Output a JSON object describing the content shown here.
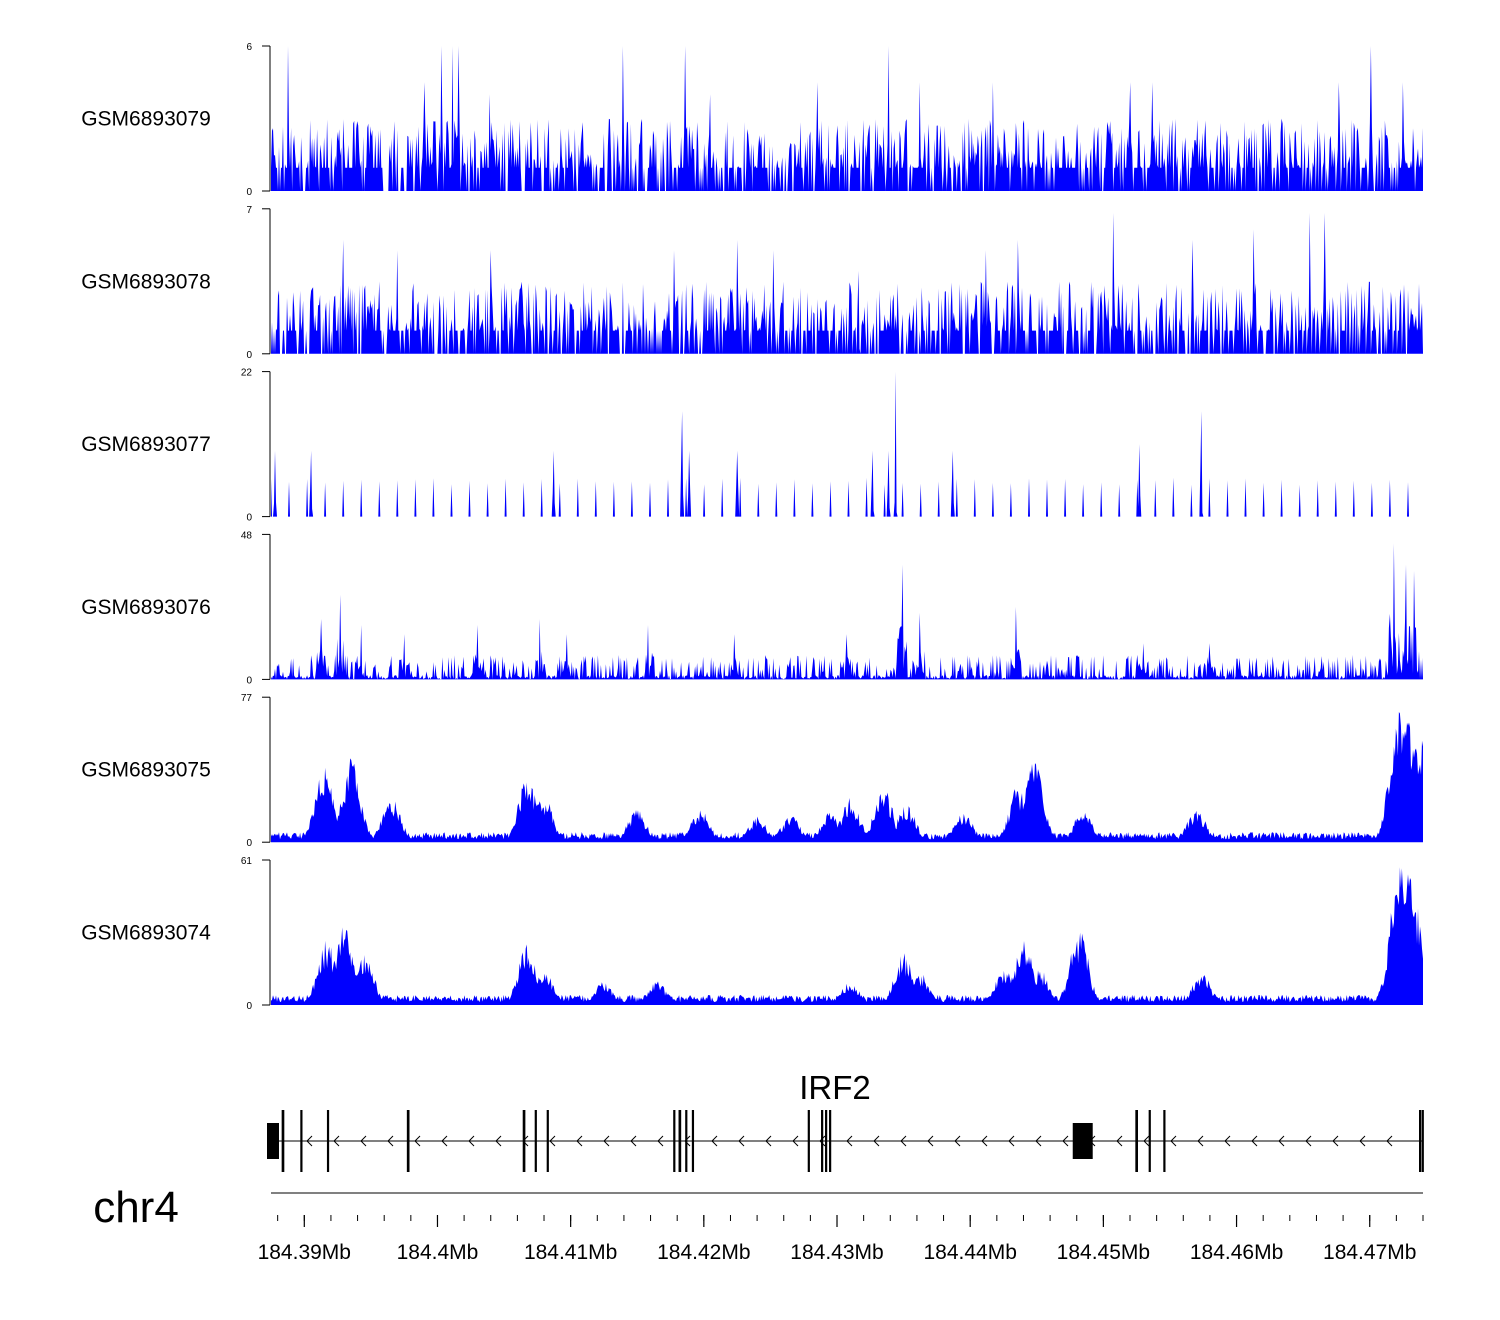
{
  "chart_data": {
    "type": "area",
    "title": "",
    "genome_region": {
      "chromosome": "chr4",
      "start_mb": 184.3875,
      "end_mb": 184.474
    },
    "fill_color": "#0000ff",
    "tracks": [
      {
        "name": "GSM6893079",
        "ylim": [
          0,
          6
        ],
        "ytick_labels": [
          "0",
          "6"
        ],
        "profile": "sparse",
        "peaks": [
          [
            184.3888,
            6
          ],
          [
            184.399,
            4.5
          ],
          [
            184.4003,
            6
          ],
          [
            184.4011,
            6
          ],
          [
            184.4016,
            6
          ],
          [
            184.4039,
            4
          ],
          [
            184.4139,
            6
          ],
          [
            184.4186,
            6
          ],
          [
            184.4205,
            4
          ],
          [
            184.4285,
            4.5
          ],
          [
            184.4339,
            6
          ],
          [
            184.4362,
            4.5
          ],
          [
            184.4417,
            4.5
          ],
          [
            184.452,
            4.5
          ],
          [
            184.4537,
            4.5
          ],
          [
            184.4677,
            4.5
          ],
          [
            184.4701,
            6
          ],
          [
            184.4725,
            4.5
          ]
        ]
      },
      {
        "name": "GSM6893078",
        "ylim": [
          0,
          7
        ],
        "ytick_labels": [
          "0",
          "7"
        ],
        "profile": "sparse",
        "peaks": [
          [
            184.3929,
            5.5
          ],
          [
            184.397,
            5
          ],
          [
            184.404,
            5
          ],
          [
            184.4178,
            5
          ],
          [
            184.4225,
            5.5
          ],
          [
            184.4252,
            5
          ],
          [
            184.4316,
            4
          ],
          [
            184.4412,
            5
          ],
          [
            184.4436,
            5.5
          ],
          [
            184.4507,
            6.8
          ],
          [
            184.4567,
            5.5
          ],
          [
            184.4613,
            6
          ],
          [
            184.4655,
            6.8
          ],
          [
            184.4666,
            6.8
          ]
        ]
      },
      {
        "name": "GSM6893077",
        "ylim": [
          0,
          22
        ],
        "ytick_labels": [
          "0",
          "22"
        ],
        "profile": "discrete",
        "peaks": [
          [
            184.3878,
            10
          ],
          [
            184.3905,
            10
          ],
          [
            184.4087,
            10
          ],
          [
            184.4184,
            16
          ],
          [
            184.4189,
            10
          ],
          [
            184.4225,
            10
          ],
          [
            184.4327,
            10
          ],
          [
            184.4339,
            10
          ],
          [
            184.4344,
            22
          ],
          [
            184.4387,
            10
          ],
          [
            184.4527,
            11
          ],
          [
            184.4574,
            16
          ]
        ]
      },
      {
        "name": "GSM6893076",
        "ylim": [
          0,
          48
        ],
        "ytick_labels": [
          "0",
          "48"
        ],
        "profile": "peaky",
        "peaks": [
          [
            184.3913,
            20
          ],
          [
            184.3927,
            28
          ],
          [
            184.3943,
            18
          ],
          [
            184.3975,
            15
          ],
          [
            184.403,
            18
          ],
          [
            184.4077,
            20
          ],
          [
            184.4097,
            15
          ],
          [
            184.4158,
            18
          ],
          [
            184.4223,
            15
          ],
          [
            184.4307,
            15
          ],
          [
            184.4349,
            38
          ],
          [
            184.4362,
            22
          ],
          [
            184.4434,
            24
          ],
          [
            184.453,
            12
          ],
          [
            184.458,
            12
          ],
          [
            184.4718,
            45
          ],
          [
            184.4727,
            38
          ],
          [
            184.4733,
            36
          ]
        ]
      },
      {
        "name": "GSM6893075",
        "ylim": [
          0,
          77
        ],
        "ytick_labels": [
          "0",
          "77"
        ],
        "profile": "broad",
        "peaks": [
          [
            184.3915,
            40
          ],
          [
            184.3935,
            45
          ],
          [
            184.3965,
            25
          ],
          [
            184.4068,
            36
          ],
          [
            184.408,
            26
          ],
          [
            184.415,
            18
          ],
          [
            184.4197,
            18
          ],
          [
            184.424,
            14
          ],
          [
            184.4265,
            15
          ],
          [
            184.4295,
            18
          ],
          [
            184.431,
            24
          ],
          [
            184.4335,
            30
          ],
          [
            184.4352,
            20
          ],
          [
            184.4395,
            16
          ],
          [
            184.4436,
            30
          ],
          [
            184.4448,
            44
          ],
          [
            184.4485,
            18
          ],
          [
            184.457,
            18
          ],
          [
            184.4722,
            77
          ],
          [
            184.473,
            70
          ],
          [
            184.4737,
            60
          ]
        ]
      },
      {
        "name": "GSM6893074",
        "ylim": [
          0,
          61
        ],
        "ytick_labels": [
          "0",
          "61"
        ],
        "profile": "broad",
        "peaks": [
          [
            184.3917,
            28
          ],
          [
            184.393,
            35
          ],
          [
            184.3945,
            22
          ],
          [
            184.4068,
            26
          ],
          [
            184.408,
            16
          ],
          [
            184.4125,
            10
          ],
          [
            184.4165,
            10
          ],
          [
            184.431,
            10
          ],
          [
            184.435,
            22
          ],
          [
            184.4362,
            14
          ],
          [
            184.4426,
            16
          ],
          [
            184.444,
            27
          ],
          [
            184.4452,
            16
          ],
          [
            184.4482,
            32
          ],
          [
            184.4574,
            14
          ],
          [
            184.4722,
            61
          ],
          [
            184.4728,
            58
          ],
          [
            184.4734,
            45
          ]
        ]
      }
    ],
    "gene": {
      "name": "IRF2",
      "strand": "-",
      "exons_mb": [
        [
          184.3872,
          184.3881
        ],
        [
          184.3883,
          184.3885
        ],
        [
          184.3897,
          184.3898
        ],
        [
          184.3917,
          184.3918
        ],
        [
          184.3977,
          184.3979
        ],
        [
          184.4064,
          184.4066
        ],
        [
          184.4073,
          184.4074
        ],
        [
          184.4082,
          184.4083
        ],
        [
          184.4177,
          184.4178
        ],
        [
          184.4181,
          184.4183
        ],
        [
          184.4186,
          184.4187
        ],
        [
          184.4191,
          184.4192
        ],
        [
          184.4278,
          184.4279
        ],
        [
          184.4288,
          184.4289
        ],
        [
          184.4291,
          184.4292
        ],
        [
          184.4294,
          184.4295
        ],
        [
          184.4477,
          184.4492
        ],
        [
          184.4524,
          184.4526
        ],
        [
          184.4534,
          184.4535
        ],
        [
          184.4545,
          184.4546
        ],
        [
          184.4737,
          184.4738
        ],
        [
          184.4739,
          184.474
        ]
      ]
    },
    "axis": {
      "chromosome_label": "chr4",
      "xlim": [
        184.3875,
        184.474
      ],
      "major_tick_labels": [
        "184.39Mb",
        "184.4Mb",
        "184.41Mb",
        "184.42Mb",
        "184.43Mb",
        "184.44Mb",
        "184.45Mb",
        "184.46Mb",
        "184.47Mb"
      ],
      "major_tick_values": [
        184.39,
        184.4,
        184.41,
        184.42,
        184.43,
        184.44,
        184.45,
        184.46,
        184.47
      ],
      "minor_tick_step_mb": 0.002
    }
  }
}
